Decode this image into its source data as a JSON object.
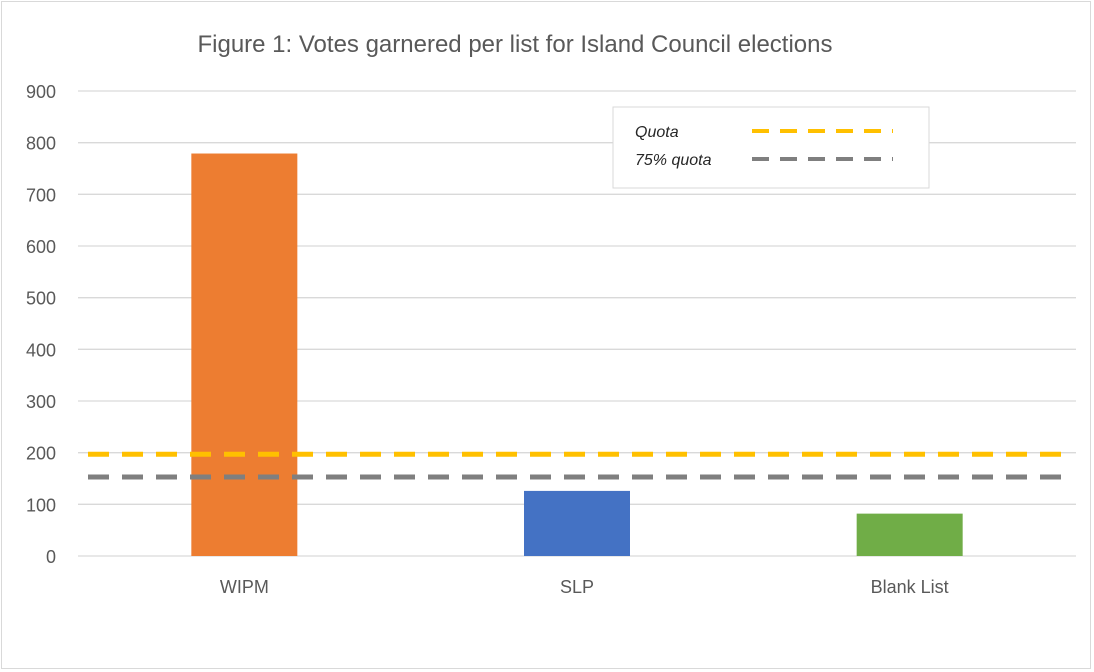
{
  "chart_data": {
    "type": "bar",
    "title": "Figure 1: Votes garnered per list for Island Council elections",
    "categories": [
      "WIPM",
      "SLP",
      "Blank List"
    ],
    "values": [
      779,
      126,
      82
    ],
    "bar_colors": [
      "#ed7d31",
      "#4472c4",
      "#70ad47"
    ],
    "ylim": [
      0,
      900
    ],
    "yticks": [
      0,
      100,
      200,
      300,
      400,
      500,
      600,
      700,
      800,
      900
    ],
    "grid": true,
    "reference_lines": [
      {
        "name": "Quota",
        "value": 197,
        "color": "#ffc000",
        "style": "dashed"
      },
      {
        "name": "75% quota",
        "value": 153,
        "color": "#7f7f7f",
        "style": "dashed"
      }
    ],
    "legend_position": "top-right"
  }
}
